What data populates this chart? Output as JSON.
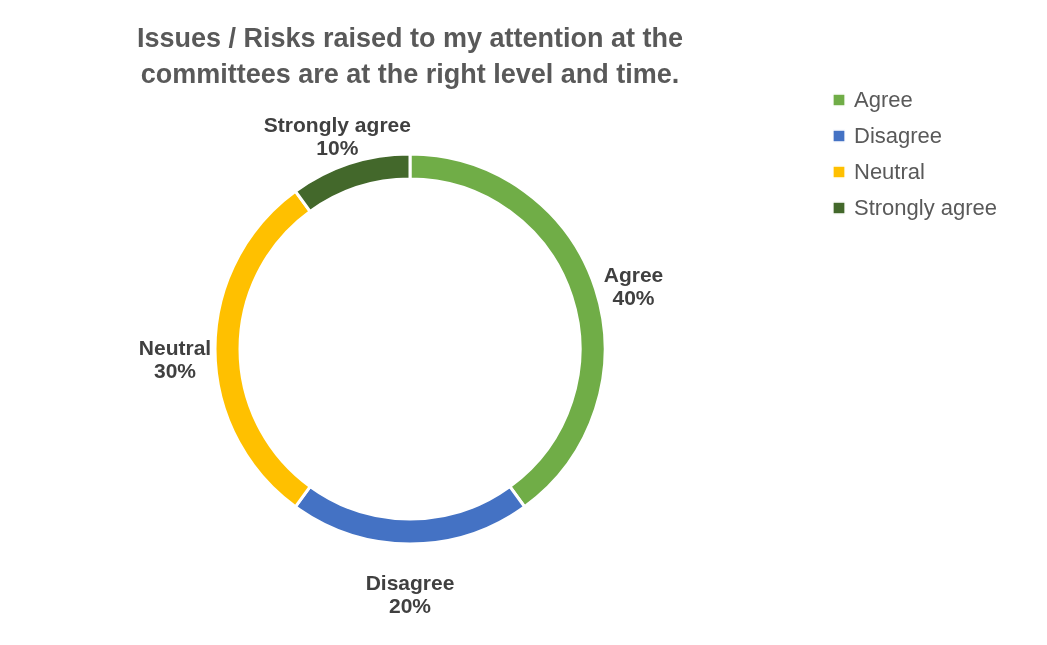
{
  "chart_data": {
    "type": "donut",
    "title": "Issues / Risks raised to my attention at the committees are at the right level and time.",
    "categories": [
      "Agree",
      "Disagree",
      "Neutral",
      "Strongly agree"
    ],
    "values": [
      40,
      20,
      30,
      10
    ],
    "value_labels": [
      "40%",
      "20%",
      "30%",
      "10%"
    ],
    "colors": [
      "#70ad47",
      "#4472c4",
      "#ffc000",
      "#43682b"
    ],
    "legend": "right"
  }
}
